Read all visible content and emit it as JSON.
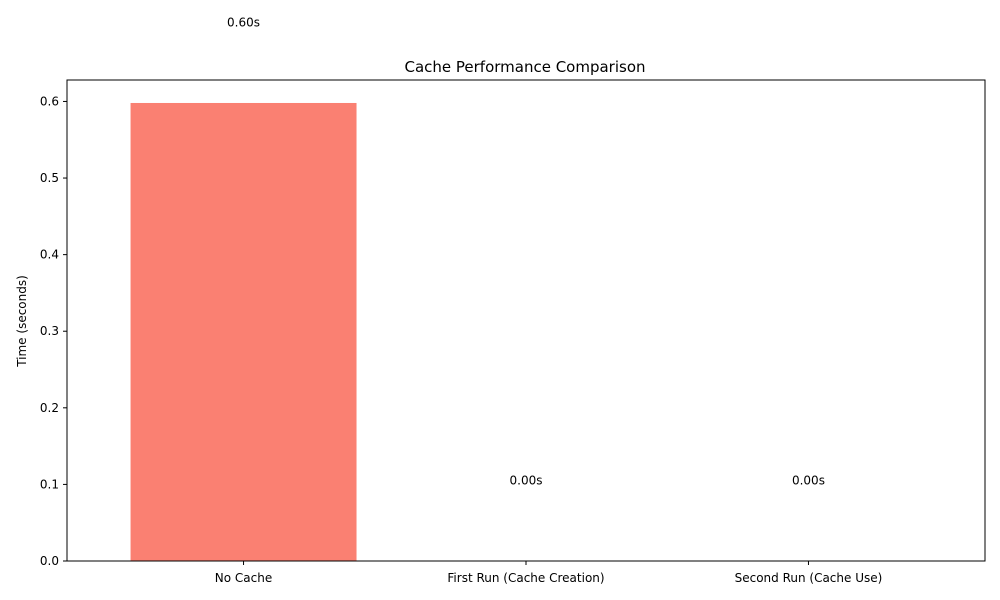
{
  "chart_data": {
    "type": "bar",
    "title": "Cache Performance Comparison",
    "xlabel": "",
    "ylabel": "Time (seconds)",
    "categories": [
      "No Cache",
      "First Run (Cache Creation)",
      "Second Run (Cache Use)"
    ],
    "values": [
      0.598,
      0.0,
      0.0
    ],
    "data_labels": [
      "0.60s",
      "0.00s",
      "0.00s"
    ],
    "ylim": [
      0,
      0.628
    ],
    "yticks": [
      0.0,
      0.1,
      0.2,
      0.3,
      0.4,
      0.5,
      0.6
    ],
    "ytick_labels": [
      "0.0",
      "0.1",
      "0.2",
      "0.3",
      "0.4",
      "0.5",
      "0.6"
    ],
    "bar_color": "#fa8072",
    "grid": false,
    "label_offset": 0.1
  }
}
